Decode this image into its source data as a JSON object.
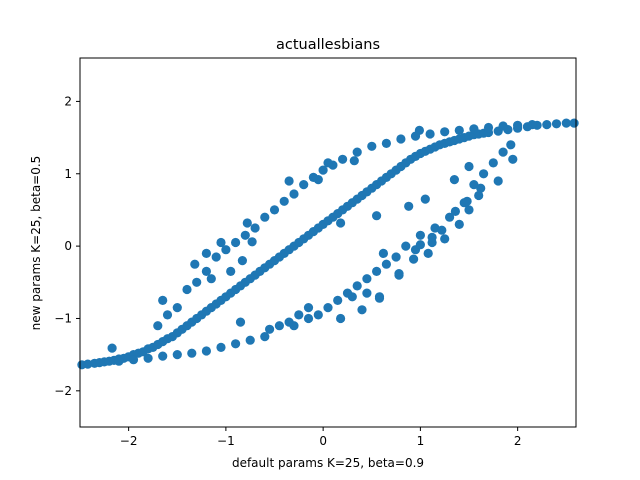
{
  "chart_data": {
    "type": "scatter",
    "title": "actuallesbians",
    "xlabel": "default params K=25, beta=0.9",
    "ylabel": "new params K=25, beta=0.5",
    "xlim": [
      -2.5,
      2.6
    ],
    "ylim": [
      -2.5,
      2.6
    ],
    "xticks": [
      -2,
      -1,
      0,
      1,
      2
    ],
    "yticks": [
      -2,
      -1,
      0,
      1,
      2
    ],
    "grid": false,
    "legend": "none",
    "point_color": "#1f77b4",
    "series": [
      {
        "points": [
          [
            -2.48,
            -1.64
          ],
          [
            -2.42,
            -1.63
          ],
          [
            -2.35,
            -1.62
          ],
          [
            -2.3,
            -1.61
          ],
          [
            -2.25,
            -1.6
          ],
          [
            -2.2,
            -1.59
          ],
          [
            -2.15,
            -1.58
          ],
          [
            -2.1,
            -1.56
          ],
          [
            -2.05,
            -1.55
          ],
          [
            -2.0,
            -1.53
          ],
          [
            -2.17,
            -1.41
          ],
          [
            -1.95,
            -1.5
          ],
          [
            -1.9,
            -1.48
          ],
          [
            -1.85,
            -1.46
          ],
          [
            -1.8,
            -1.42
          ],
          [
            -1.75,
            -1.4
          ],
          [
            -1.7,
            -1.36
          ],
          [
            -1.65,
            -1.32
          ],
          [
            -1.6,
            -1.28
          ],
          [
            -1.55,
            -1.25
          ],
          [
            -1.5,
            -1.2
          ],
          [
            -1.45,
            -1.15
          ],
          [
            -1.4,
            -1.1
          ],
          [
            -1.35,
            -1.05
          ],
          [
            -1.3,
            -1.0
          ],
          [
            -1.25,
            -0.95
          ],
          [
            -1.2,
            -0.9
          ],
          [
            -1.15,
            -0.85
          ],
          [
            -1.1,
            -0.8
          ],
          [
            -1.05,
            -0.75
          ],
          [
            -1.0,
            -0.7
          ],
          [
            -0.95,
            -0.65
          ],
          [
            -0.9,
            -0.6
          ],
          [
            -0.85,
            -0.55
          ],
          [
            -0.8,
            -0.5
          ],
          [
            -0.75,
            -0.45
          ],
          [
            -0.7,
            -0.4
          ],
          [
            -0.65,
            -0.35
          ],
          [
            -0.6,
            -0.3
          ],
          [
            -0.55,
            -0.25
          ],
          [
            -0.5,
            -0.2
          ],
          [
            -0.45,
            -0.15
          ],
          [
            -0.4,
            -0.1
          ],
          [
            -0.35,
            -0.05
          ],
          [
            -0.3,
            0.0
          ],
          [
            -0.25,
            0.05
          ],
          [
            -0.2,
            0.1
          ],
          [
            -0.15,
            0.15
          ],
          [
            -0.1,
            0.2
          ],
          [
            -0.05,
            0.25
          ],
          [
            0.0,
            0.3
          ],
          [
            0.05,
            0.35
          ],
          [
            0.1,
            0.4
          ],
          [
            0.15,
            0.45
          ],
          [
            0.2,
            0.5
          ],
          [
            0.25,
            0.55
          ],
          [
            0.3,
            0.6
          ],
          [
            0.35,
            0.65
          ],
          [
            0.4,
            0.7
          ],
          [
            0.45,
            0.75
          ],
          [
            0.5,
            0.8
          ],
          [
            0.55,
            0.85
          ],
          [
            0.6,
            0.9
          ],
          [
            0.65,
            0.95
          ],
          [
            0.7,
            1.0
          ],
          [
            0.75,
            1.05
          ],
          [
            0.8,
            1.1
          ],
          [
            0.85,
            1.15
          ],
          [
            0.9,
            1.2
          ],
          [
            0.95,
            1.24
          ],
          [
            1.0,
            1.28
          ],
          [
            1.05,
            1.31
          ],
          [
            1.1,
            1.34
          ],
          [
            1.15,
            1.37
          ],
          [
            1.2,
            1.4
          ],
          [
            1.25,
            1.42
          ],
          [
            1.3,
            1.44
          ],
          [
            1.35,
            1.46
          ],
          [
            1.4,
            1.48
          ],
          [
            1.45,
            1.5
          ],
          [
            1.5,
            1.52
          ],
          [
            1.55,
            1.54
          ],
          [
            1.6,
            1.55
          ],
          [
            1.65,
            1.56
          ],
          [
            1.7,
            1.57
          ],
          [
            1.8,
            1.59
          ],
          [
            1.9,
            1.61
          ],
          [
            2.0,
            1.63
          ],
          [
            2.1,
            1.65
          ],
          [
            2.2,
            1.67
          ],
          [
            2.3,
            1.68
          ],
          [
            2.4,
            1.69
          ],
          [
            2.5,
            1.7
          ],
          [
            2.58,
            1.7
          ],
          [
            0.99,
            1.6
          ],
          [
            0.32,
            1.18
          ],
          [
            -0.05,
            0.92
          ],
          [
            -0.73,
            0.06
          ],
          [
            -0.83,
            -0.2
          ],
          [
            -0.95,
            -0.35
          ],
          [
            -1.2,
            -0.1
          ],
          [
            -1.15,
            -0.45
          ],
          [
            -0.85,
            -1.05
          ],
          [
            -0.55,
            -1.15
          ],
          [
            -0.3,
            -1.1
          ],
          [
            -0.15,
            -1.0
          ],
          [
            0.18,
            -1.0
          ],
          [
            0.3,
            -0.7
          ],
          [
            0.45,
            -0.65
          ],
          [
            0.58,
            -0.7
          ],
          [
            0.78,
            -0.4
          ],
          [
            0.95,
            -0.05
          ],
          [
            1.08,
            -0.1
          ],
          [
            1.12,
            0.05
          ],
          [
            1.25,
            0.1
          ],
          [
            1.4,
            0.3
          ],
          [
            1.5,
            0.5
          ],
          [
            1.6,
            0.7
          ],
          [
            1.8,
            0.9
          ],
          [
            1.95,
            1.2
          ],
          [
            1.93,
            1.4
          ],
          [
            1.85,
            1.3
          ],
          [
            1.75,
            1.15
          ],
          [
            1.65,
            1.0
          ],
          [
            1.55,
            0.85
          ],
          [
            1.45,
            0.6
          ],
          [
            1.3,
            0.4
          ],
          [
            1.15,
            0.25
          ],
          [
            1.0,
            0.15
          ],
          [
            0.85,
            0.0
          ],
          [
            0.75,
            -0.15
          ],
          [
            0.65,
            -0.25
          ],
          [
            0.55,
            -0.35
          ],
          [
            0.45,
            -0.45
          ],
          [
            0.35,
            -0.55
          ],
          [
            0.25,
            -0.65
          ],
          [
            0.15,
            -0.75
          ],
          [
            0.05,
            -0.85
          ],
          [
            -0.05,
            -0.95
          ],
          [
            -0.15,
            -0.85
          ],
          [
            -0.25,
            -0.95
          ],
          [
            -0.35,
            -1.05
          ],
          [
            -0.45,
            -1.1
          ],
          [
            -0.6,
            -1.25
          ],
          [
            -0.75,
            -1.3
          ],
          [
            -0.9,
            -1.35
          ],
          [
            -1.05,
            -1.4
          ],
          [
            -1.2,
            -1.45
          ],
          [
            -1.35,
            -1.48
          ],
          [
            -1.5,
            -1.5
          ],
          [
            -1.65,
            -1.52
          ],
          [
            -1.8,
            -1.55
          ],
          [
            -1.95,
            -1.57
          ],
          [
            -2.1,
            -1.59
          ],
          [
            -1.7,
            -1.1
          ],
          [
            -1.6,
            -0.95
          ],
          [
            -1.5,
            -0.85
          ],
          [
            -1.4,
            -0.6
          ],
          [
            -1.3,
            -0.5
          ],
          [
            -1.2,
            -0.35
          ],
          [
            -1.1,
            -0.15
          ],
          [
            -1.0,
            -0.05
          ],
          [
            -0.9,
            0.05
          ],
          [
            -0.8,
            0.15
          ],
          [
            -0.7,
            0.25
          ],
          [
            -0.6,
            0.4
          ],
          [
            -0.5,
            0.5
          ],
          [
            -0.4,
            0.62
          ],
          [
            -0.3,
            0.72
          ],
          [
            -0.2,
            0.85
          ],
          [
            -0.1,
            0.95
          ],
          [
            0.0,
            1.05
          ],
          [
            0.1,
            1.12
          ],
          [
            0.2,
            1.2
          ],
          [
            0.35,
            1.3
          ],
          [
            0.5,
            1.38
          ],
          [
            0.65,
            1.42
          ],
          [
            0.8,
            1.48
          ],
          [
            0.95,
            1.52
          ],
          [
            1.1,
            1.55
          ],
          [
            1.25,
            1.58
          ],
          [
            1.4,
            1.6
          ],
          [
            1.55,
            1.62
          ],
          [
            1.7,
            1.64
          ],
          [
            1.85,
            1.66
          ],
          [
            2.0,
            1.67
          ],
          [
            2.15,
            1.68
          ],
          [
            -1.65,
            -0.75
          ],
          [
            -1.32,
            -0.25
          ],
          [
            -1.05,
            0.05
          ],
          [
            -0.78,
            0.32
          ],
          [
            -0.35,
            0.9
          ],
          [
            0.05,
            1.15
          ],
          [
            0.18,
            0.32
          ],
          [
            0.55,
            0.42
          ],
          [
            0.62,
            -0.1
          ],
          [
            0.88,
            0.55
          ],
          [
            1.05,
            0.65
          ],
          [
            1.35,
            0.92
          ],
          [
            1.5,
            1.1
          ],
          [
            0.4,
            -0.88
          ],
          [
            0.58,
            -0.72
          ],
          [
            0.78,
            -0.38
          ],
          [
            0.93,
            -0.18
          ],
          [
            1.0,
            0.02
          ],
          [
            1.12,
            0.12
          ],
          [
            1.22,
            0.22
          ],
          [
            1.36,
            0.48
          ],
          [
            1.48,
            0.62
          ],
          [
            1.62,
            0.8
          ]
        ]
      }
    ]
  }
}
